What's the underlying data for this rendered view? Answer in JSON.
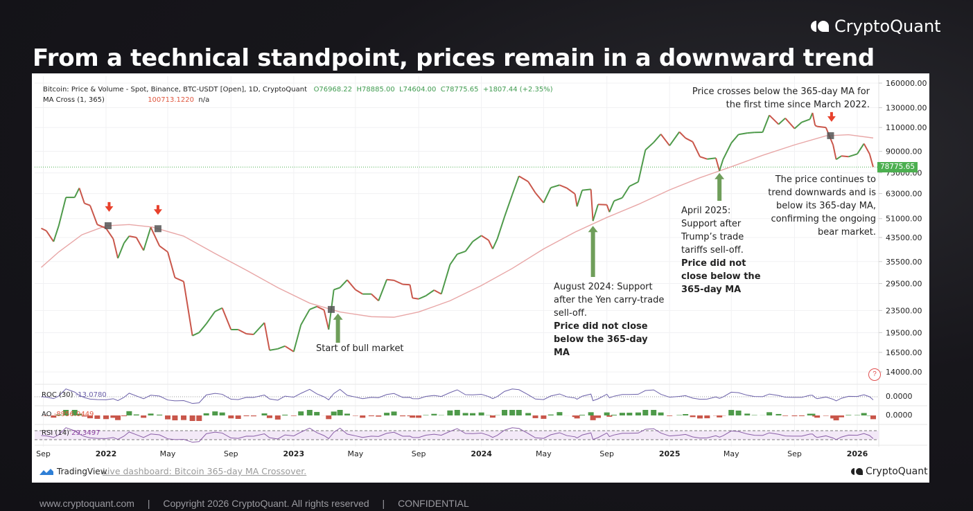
{
  "slide": {
    "title": "From a technical standpoint, prices remain in a downward trend",
    "brand": "CryptoQuant",
    "footer": {
      "website": "www.cryptoquant.com",
      "copyright": "Copyright 2026 CryptoQuant. All rights reserved",
      "confidential": "CONFIDENTIAL",
      "separator": "|"
    }
  },
  "chart_header": {
    "symbol": "Bitcoin: Price & Volume - Spot, Binance, BTC-USDT [Open], 1D, CryptoQuant",
    "open": "O76968.22",
    "high": "H78885.00",
    "low": "L74604.00",
    "close": "C78775.65",
    "change": "+1807.44 (+2.35%)",
    "ma_label": "MA Cross (1, 365)",
    "ma_value": "100713.1220",
    "ma_na": "n/a"
  },
  "indicators": {
    "roc": {
      "label": "ROC (30)",
      "value": "-13.0780",
      "axis": "0.0000"
    },
    "ao": {
      "label": "AO",
      "value": "-8956.0449",
      "axis": "0.0000"
    },
    "rsi": {
      "label": "RSI (14)",
      "value": "29.3497"
    }
  },
  "footer_bar": {
    "tradingview": "TradingView",
    "link": "Live dashboard: Bitcoin 365-day MA Crossover.",
    "brand": "CryptoQuant"
  },
  "annotations": {
    "top_right": "Price crosses below the 365-day MA for the first time since March 2022.",
    "right": "The price continues to trend downwards and is below its 365-day MA, confirming the ongoing bear market.",
    "bull": "Start of bull market",
    "aug2024": "August 2024: Support after the Yen carry-trade sell-off.",
    "aug2024_bold": "Price did not close below the 365-day MA",
    "apr2025": "April 2025: Support after Trump’s trade tariffs sell-off.",
    "apr2025_bold": "Price did not close below the 365-day MA",
    "help": "?"
  },
  "colors": {
    "up": "#4e9a4a",
    "down": "#c9564a",
    "ma": "#e8a6a6",
    "roc": "#6a5fa8",
    "rsi": "#8a5fa8",
    "green_arrow": "#6f9e5a",
    "red_arrow": "#e8412c",
    "last_price_tag": "#4caf50"
  },
  "chart_data": {
    "type": "line",
    "title": "Bitcoin: Price & Volume - Spot, Binance, BTC-USDT [Open], 1D, CryptoQuant",
    "y_scale": "log",
    "ylim": [
      14000,
      160000
    ],
    "y_ticks": [
      "160000.00",
      "130000.00",
      "110000.00",
      "90000.00",
      "75000.00",
      "63000.00",
      "51000.00",
      "43500.00",
      "35500.00",
      "29500.00",
      "23500.00",
      "19500.00",
      "16500.00",
      "14000.00"
    ],
    "x_ticks": [
      {
        "label": "Sep",
        "date": "2021-09-01",
        "year": false
      },
      {
        "label": "2022",
        "date": "2022-01-01",
        "year": true
      },
      {
        "label": "May",
        "date": "2022-05-01",
        "year": false
      },
      {
        "label": "Sep",
        "date": "2022-09-01",
        "year": false
      },
      {
        "label": "2023",
        "date": "2023-01-01",
        "year": true
      },
      {
        "label": "May",
        "date": "2023-05-01",
        "year": false
      },
      {
        "label": "Sep",
        "date": "2023-09-01",
        "year": false
      },
      {
        "label": "2024",
        "date": "2024-01-01",
        "year": true
      },
      {
        "label": "May",
        "date": "2024-05-01",
        "year": false
      },
      {
        "label": "Sep",
        "date": "2024-09-01",
        "year": false
      },
      {
        "label": "2025",
        "date": "2025-01-01",
        "year": true
      },
      {
        "label": "May",
        "date": "2025-05-01",
        "year": false
      },
      {
        "label": "Sep",
        "date": "2025-09-01",
        "year": false
      },
      {
        "label": "2026",
        "date": "2026-01-01",
        "year": true
      }
    ],
    "last_price": "78775.65",
    "grid": true,
    "series": [
      {
        "name": "Bitcoin: Price",
        "points": [
          [
            "2021-08-28",
            47000
          ],
          [
            "2021-09-07",
            46000
          ],
          [
            "2021-09-21",
            42000
          ],
          [
            "2021-10-01",
            48000
          ],
          [
            "2021-10-15",
            61000
          ],
          [
            "2021-11-01",
            61000
          ],
          [
            "2021-11-10",
            66000
          ],
          [
            "2021-11-20",
            58000
          ],
          [
            "2021-12-01",
            57000
          ],
          [
            "2021-12-15",
            48500
          ],
          [
            "2022-01-01",
            47000
          ],
          [
            "2022-01-15",
            43000
          ],
          [
            "2022-01-24",
            36500
          ],
          [
            "2022-02-05",
            41500
          ],
          [
            "2022-02-15",
            44000
          ],
          [
            "2022-03-01",
            43500
          ],
          [
            "2022-03-15",
            39000
          ],
          [
            "2022-03-29",
            47400
          ],
          [
            "2022-04-15",
            40500
          ],
          [
            "2022-05-01",
            38500
          ],
          [
            "2022-05-15",
            31000
          ],
          [
            "2022-06-01",
            30000
          ],
          [
            "2022-06-18",
            19000
          ],
          [
            "2022-07-01",
            19500
          ],
          [
            "2022-07-15",
            21000
          ],
          [
            "2022-08-01",
            23300
          ],
          [
            "2022-08-15",
            24000
          ],
          [
            "2022-09-01",
            20000
          ],
          [
            "2022-09-15",
            20000
          ],
          [
            "2022-10-01",
            19300
          ],
          [
            "2022-10-15",
            19200
          ],
          [
            "2022-11-05",
            21200
          ],
          [
            "2022-11-15",
            16800
          ],
          [
            "2022-12-01",
            17000
          ],
          [
            "2022-12-15",
            17400
          ],
          [
            "2023-01-01",
            16600
          ],
          [
            "2023-01-15",
            20800
          ],
          [
            "2023-02-01",
            23700
          ],
          [
            "2023-02-15",
            24300
          ],
          [
            "2023-03-01",
            23600
          ],
          [
            "2023-03-10",
            20000
          ],
          [
            "2023-03-20",
            28000
          ],
          [
            "2023-04-01",
            28500
          ],
          [
            "2023-04-15",
            30400
          ],
          [
            "2023-05-01",
            28000
          ],
          [
            "2023-05-15",
            27000
          ],
          [
            "2023-06-01",
            27000
          ],
          [
            "2023-06-15",
            25500
          ],
          [
            "2023-07-01",
            30500
          ],
          [
            "2023-07-15",
            30300
          ],
          [
            "2023-08-01",
            29300
          ],
          [
            "2023-08-15",
            29200
          ],
          [
            "2023-08-20",
            26100
          ],
          [
            "2023-09-01",
            25900
          ],
          [
            "2023-09-15",
            26600
          ],
          [
            "2023-10-01",
            27900
          ],
          [
            "2023-10-15",
            27000
          ],
          [
            "2023-11-01",
            34600
          ],
          [
            "2023-11-15",
            37800
          ],
          [
            "2023-12-01",
            38700
          ],
          [
            "2023-12-15",
            42000
          ],
          [
            "2024-01-01",
            44200
          ],
          [
            "2024-01-15",
            42500
          ],
          [
            "2024-01-23",
            39500
          ],
          [
            "2024-02-01",
            43000
          ],
          [
            "2024-02-15",
            51800
          ],
          [
            "2024-03-01",
            62400
          ],
          [
            "2024-03-14",
            73000
          ],
          [
            "2024-04-01",
            69700
          ],
          [
            "2024-04-15",
            63400
          ],
          [
            "2024-05-01",
            58300
          ],
          [
            "2024-05-15",
            66200
          ],
          [
            "2024-06-01",
            67700
          ],
          [
            "2024-06-15",
            66000
          ],
          [
            "2024-07-01",
            62800
          ],
          [
            "2024-07-05",
            56500
          ],
          [
            "2024-07-15",
            64800
          ],
          [
            "2024-08-01",
            65300
          ],
          [
            "2024-08-05",
            50000
          ],
          [
            "2024-08-15",
            57500
          ],
          [
            "2024-09-01",
            57300
          ],
          [
            "2024-09-06",
            53900
          ],
          [
            "2024-09-15",
            59200
          ],
          [
            "2024-10-01",
            60800
          ],
          [
            "2024-10-15",
            67000
          ],
          [
            "2024-11-01",
            69500
          ],
          [
            "2024-11-15",
            91000
          ],
          [
            "2024-12-01",
            97000
          ],
          [
            "2024-12-15",
            104000
          ],
          [
            "2025-01-01",
            94400
          ],
          [
            "2025-01-20",
            106000
          ],
          [
            "2025-02-01",
            100600
          ],
          [
            "2025-02-15",
            97500
          ],
          [
            "2025-03-01",
            86000
          ],
          [
            "2025-03-15",
            84300
          ],
          [
            "2025-04-01",
            85000
          ],
          [
            "2025-04-08",
            76300
          ],
          [
            "2025-04-15",
            84000
          ],
          [
            "2025-05-01",
            96500
          ],
          [
            "2025-05-15",
            103700
          ],
          [
            "2025-06-01",
            105000
          ],
          [
            "2025-06-15",
            105500
          ],
          [
            "2025-07-01",
            105700
          ],
          [
            "2025-07-14",
            122000
          ],
          [
            "2025-08-01",
            113000
          ],
          [
            "2025-08-14",
            119000
          ],
          [
            "2025-09-01",
            109000
          ],
          [
            "2025-09-15",
            115000
          ],
          [
            "2025-10-01",
            118000
          ],
          [
            "2025-10-06",
            124500
          ],
          [
            "2025-10-11",
            112000
          ],
          [
            "2025-10-15",
            111000
          ],
          [
            "2025-11-01",
            110000
          ],
          [
            "2025-11-15",
            95000
          ],
          [
            "2025-11-21",
            84000
          ],
          [
            "2025-12-01",
            86500
          ],
          [
            "2025-12-15",
            86000
          ],
          [
            "2026-01-01",
            88000
          ],
          [
            "2026-01-14",
            96000
          ],
          [
            "2026-01-25",
            88000
          ],
          [
            "2026-02-01",
            78775.65
          ]
        ]
      },
      {
        "name": "MA Cross (1, 365)",
        "points": [
          [
            "2021-08-28",
            33800
          ],
          [
            "2021-10-01",
            38500
          ],
          [
            "2021-11-15",
            44500
          ],
          [
            "2022-01-01",
            48000
          ],
          [
            "2022-02-15",
            48500
          ],
          [
            "2022-04-01",
            47500
          ],
          [
            "2022-06-01",
            44000
          ],
          [
            "2022-08-01",
            38000
          ],
          [
            "2022-10-01",
            33000
          ],
          [
            "2022-12-01",
            28500
          ],
          [
            "2023-02-01",
            25000
          ],
          [
            "2023-04-01",
            23200
          ],
          [
            "2023-06-01",
            22300
          ],
          [
            "2023-07-15",
            22200
          ],
          [
            "2023-09-01",
            23200
          ],
          [
            "2023-11-01",
            25500
          ],
          [
            "2024-01-01",
            29000
          ],
          [
            "2024-03-01",
            33500
          ],
          [
            "2024-05-01",
            39500
          ],
          [
            "2024-07-01",
            45500
          ],
          [
            "2024-09-01",
            51500
          ],
          [
            "2024-11-01",
            57500
          ],
          [
            "2025-01-01",
            65000
          ],
          [
            "2025-03-01",
            72000
          ],
          [
            "2025-05-01",
            79000
          ],
          [
            "2025-07-01",
            87000
          ],
          [
            "2025-09-01",
            95000
          ],
          [
            "2025-11-01",
            102500
          ],
          [
            "2025-12-15",
            103500
          ],
          [
            "2026-02-01",
            100713.122
          ]
        ]
      }
    ],
    "crossovers": [
      "2022-01-05",
      "2022-04-12",
      "2023-03-15",
      "2025-11-10"
    ],
    "sell_signals": [
      "2022-01-07",
      "2022-04-12",
      "2025-11-12"
    ],
    "support_arrows": [
      "2023-03-28",
      "2024-08-05",
      "2025-04-08"
    ]
  }
}
